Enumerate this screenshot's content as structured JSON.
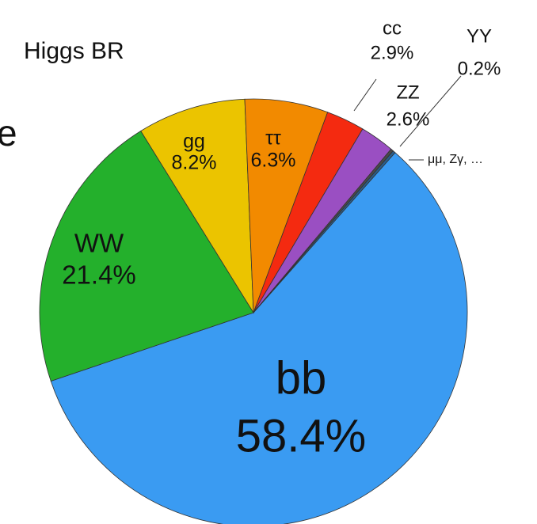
{
  "chart_data": {
    "type": "pie",
    "title": "Higgs BR",
    "annotations": [
      "e"
    ],
    "categories": [
      "bb",
      "WW",
      "gg",
      "ττ",
      "cc",
      "ZZ",
      "YY",
      "μμ, Zγ, …"
    ],
    "values": [
      58.4,
      21.4,
      8.2,
      6.3,
      2.9,
      2.6,
      0.2,
      0.2
    ],
    "value_labels": [
      "58.4%",
      "21.4%",
      "8.2%",
      "6.3%",
      "2.9%",
      "2.6%",
      "0.2%",
      null
    ],
    "colors": [
      "#3a9bf2",
      "#24b02c",
      "#ebc400",
      "#f28a00",
      "#f42a10",
      "#9a4fc2",
      "#4a4a4a",
      "#2a5d8a"
    ]
  }
}
